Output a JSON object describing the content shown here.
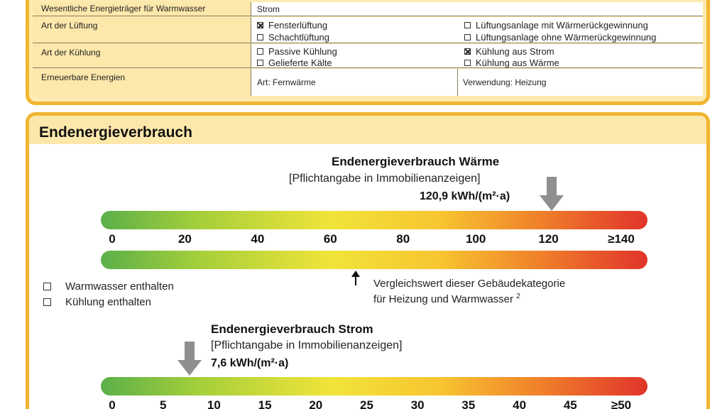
{
  "table": {
    "rows": [
      {
        "label": "Wesentliche Energieträger für Warmwasser",
        "value": "Strom"
      },
      {
        "label": "Art der Lüftung",
        "options": [
          {
            "text": "Fensterlüftung",
            "checked": true
          },
          {
            "text": "Schachtlüftung",
            "checked": false
          },
          {
            "text": "Lüftungsanlage mit Wärmerückgewinnung",
            "checked": false
          },
          {
            "text": "Lüftungsanlage ohne Wärmerückgewinnung",
            "checked": false
          }
        ]
      },
      {
        "label": "Art der Kühlung",
        "options": [
          {
            "text": "Passive Kühlung",
            "checked": false
          },
          {
            "text": "Gelieferte Kälte",
            "checked": false
          },
          {
            "text": "Kühlung aus Strom",
            "checked": true
          },
          {
            "text": "Kühlung aus Wärme",
            "checked": false
          }
        ]
      },
      {
        "label": "Erneuerbare Energien",
        "art": "Art: Fernwärme",
        "verwendung": "Verwendung: Heizung"
      }
    ]
  },
  "section": {
    "title": "Endenergieverbrauch",
    "heat": {
      "title": "Endenergieverbrauch Wärme",
      "subtitle": "[Pflichtangabe in Immobilienanzeigen]",
      "value_label": "120,9 kWh/(m²·a)",
      "value": 120.9,
      "scale_max": 140,
      "ticks": [
        "0",
        "20",
        "40",
        "60",
        "80",
        "100",
        "120",
        "≥140"
      ],
      "compare_value": 67,
      "compare_line1": "Vergleichswert dieser Gebäudekategorie",
      "compare_line2": "für Heizung und Warmwasser",
      "compare_footnote": "2"
    },
    "checks": [
      {
        "text": "Warmwasser enthalten",
        "checked": false
      },
      {
        "text": "Kühlung enthalten",
        "checked": false
      }
    ],
    "power": {
      "title": "Endenergieverbrauch Strom",
      "subtitle": "[Pflichtangabe in Immobilienanzeigen]",
      "value_label": "7,6 kWh/(m²·a)",
      "value": 7.6,
      "scale_max": 50,
      "ticks": [
        "0",
        "5",
        "10",
        "15",
        "20",
        "25",
        "30",
        "35",
        "40",
        "45",
        "≥50"
      ]
    }
  },
  "colors": {
    "panel_border": "#f2b531",
    "panel_fill": "#fde8ab",
    "arrow": "#8f8f8f"
  }
}
